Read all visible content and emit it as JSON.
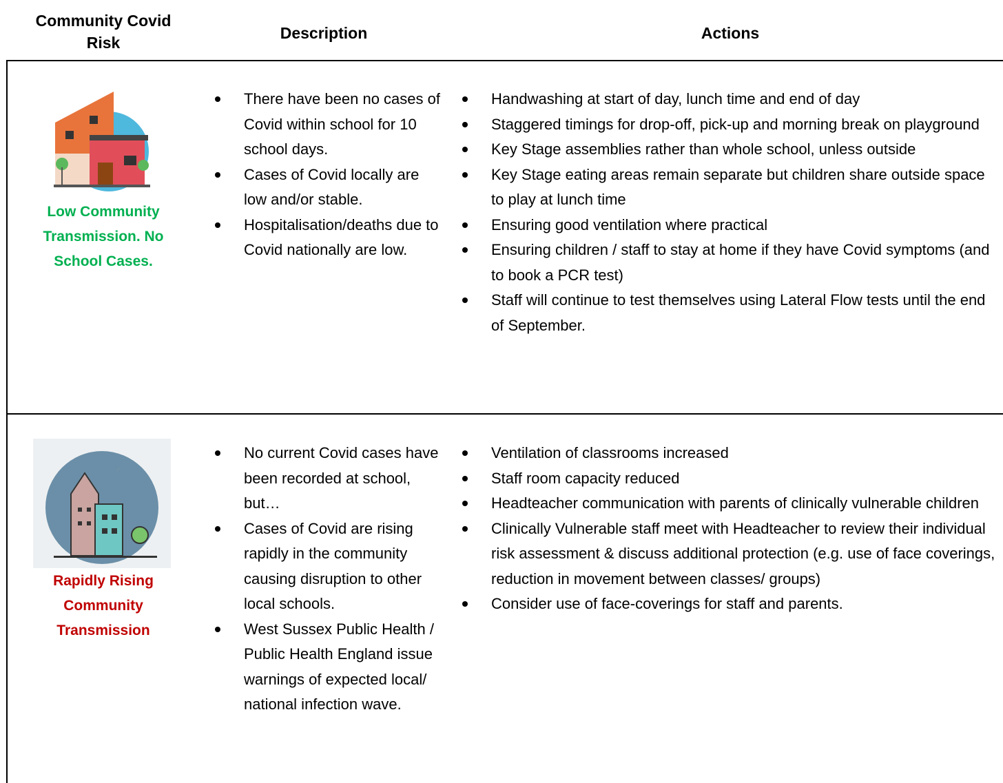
{
  "table": {
    "headers": [
      "Community Covid Risk",
      "Description",
      "Actions"
    ],
    "rows": [
      {
        "risk": "Low Community Transmission. No School Cases.",
        "description": [
          "There have been no cases of Covid within school for 10 school days.",
          "Cases of Covid locally are low and/or stable.",
          "Hospitalisation/deaths due to Covid nationally are low."
        ],
        "actions": [
          "Handwashing at start of day, lunch time and end of day",
          "Staggered timings for drop-off, pick-up and morning break on playground",
          "Key Stage assemblies rather than whole school, unless outside",
          "Key Stage eating areas remain separate but children share outside space to play at lunch time",
          "Ensuring good ventilation where practical",
          "Ensuring children / staff to stay at home if they have Covid symptoms (and to book a PCR test)",
          "Staff will continue to test themselves using Lateral Flow tests until the end of September."
        ]
      },
      {
        "risk": "Rapidly Rising Community Transmission",
        "description": [
          "No current Covid cases have been recorded at school, but…",
          "Cases of Covid are rising rapidly in the community causing disruption to other local schools.",
          "West Sussex Public Health / Public Health England issue warnings of expected local/ national infection wave."
        ],
        "actions": [
          "Ventilation of classrooms increased",
          "Staff room capacity reduced",
          "Headteacher communication with parents of clinically vulnerable children",
          "Clinically Vulnerable staff meet with Headteacher to review their individual risk assessment & discuss additional protection (e.g. use of face coverings, reduction in movement between classes/ groups)",
          "Consider use of face-coverings for staff and parents."
        ]
      }
    ]
  }
}
